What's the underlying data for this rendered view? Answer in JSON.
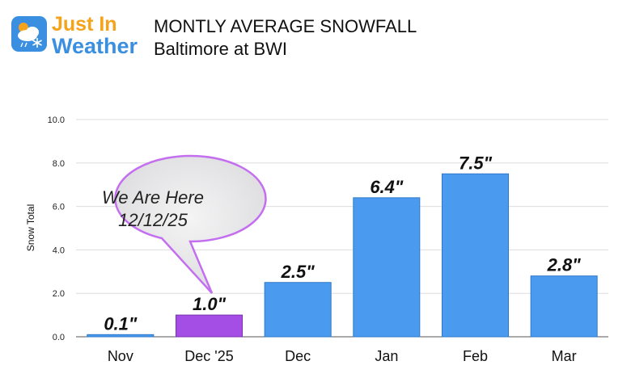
{
  "logo": {
    "line1": "Just In",
    "line2": "Weather",
    "icon": "sun-cloud-snowflake-icon"
  },
  "header": {
    "title": "MONTLY AVERAGE SNOWFALL",
    "subtitle": "Baltimore at BWI"
  },
  "callout": {
    "line1": "We Are Here",
    "line2": "12/12/25"
  },
  "colors": {
    "bar": "#4a9bf0",
    "highlight": "#a54ee6",
    "callout_fill": "#e9e9ea",
    "callout_border": "#c36ff0",
    "logo_blue": "#3b8fe0",
    "logo_orange": "#f5a31a"
  },
  "chart_data": {
    "type": "bar",
    "title": "MONTLY AVERAGE SNOWFALL",
    "subtitle": "Baltimore at BWI",
    "ylabel": "Snow Total",
    "xlabel": "",
    "categories": [
      "Nov",
      "Dec '25",
      "Dec",
      "Jan",
      "Feb",
      "Mar"
    ],
    "values": [
      0.1,
      1.0,
      2.5,
      6.4,
      7.5,
      2.8
    ],
    "data_labels": [
      "0.1\"",
      "1.0\"",
      "2.5\"",
      "6.4\"",
      "7.5\"",
      "2.8\""
    ],
    "highlight_category": "Dec '25",
    "ylim": [
      0,
      10
    ],
    "yticks": [
      "0.0",
      "2.0",
      "4.0",
      "6.0",
      "8.0",
      "10.0"
    ],
    "grid": true,
    "legend": "none"
  }
}
